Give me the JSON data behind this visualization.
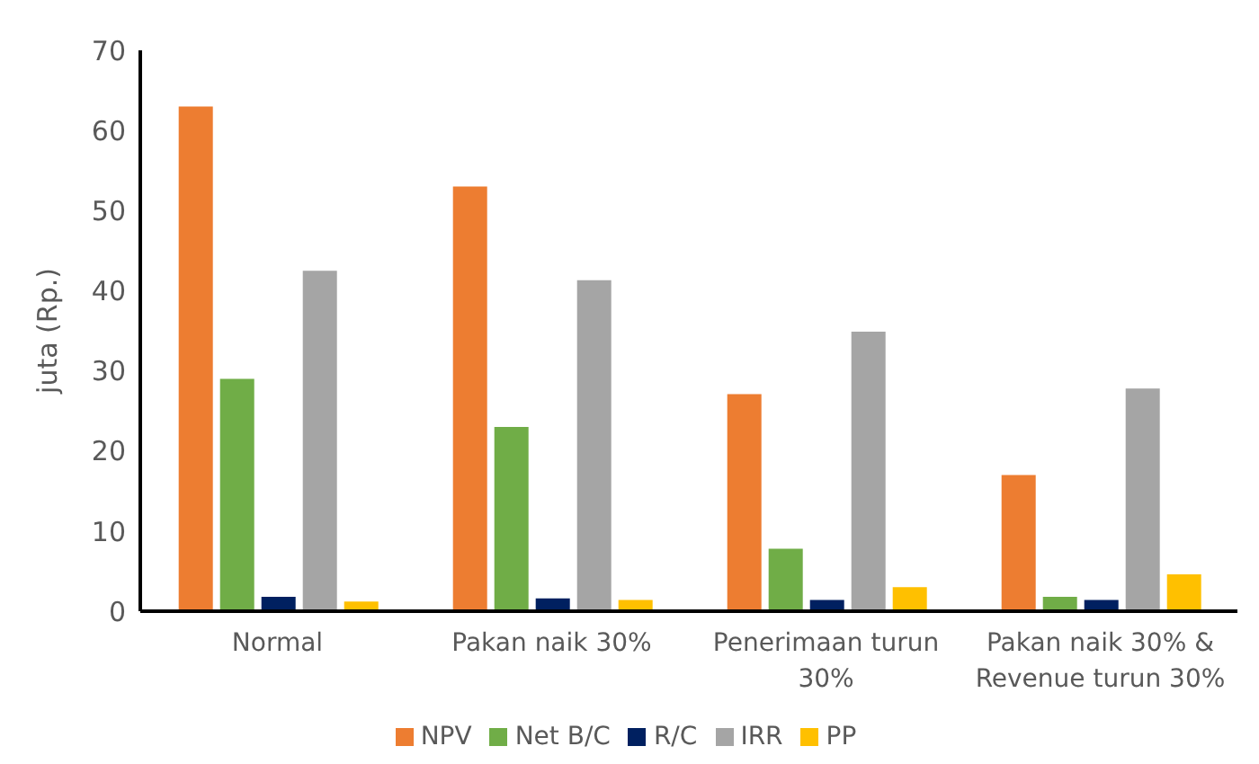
{
  "chart_data": {
    "type": "bar",
    "ylabel": "juta (Rp.)",
    "categories": [
      "Normal",
      "Pakan naik 30%",
      "Penerimaan turun 30%",
      "Pakan naik 30% & Revenue turun 30%"
    ],
    "series": [
      {
        "name": "NPV",
        "color": "#ed7d31",
        "values": [
          63,
          53,
          27.1,
          17
        ]
      },
      {
        "name": "Net B/C",
        "color": "#70ad47",
        "values": [
          29,
          23,
          7.8,
          1.8
        ]
      },
      {
        "name": "R/C",
        "color": "#002060",
        "values": [
          1.8,
          1.6,
          1.4,
          1.4
        ]
      },
      {
        "name": "IRR",
        "color": "#a5a5a5",
        "values": [
          42.5,
          41.3,
          34.9,
          27.8
        ]
      },
      {
        "name": "PP",
        "color": "#ffc000",
        "values": [
          1.2,
          1.4,
          3,
          4.6
        ]
      }
    ],
    "ylim": [
      0,
      70
    ],
    "yticks": [
      0,
      10,
      20,
      30,
      40,
      50,
      60,
      70
    ],
    "grid": false,
    "legend": "bottom"
  }
}
